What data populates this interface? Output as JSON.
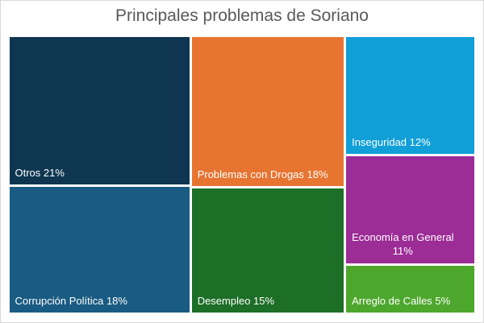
{
  "chart_data": {
    "type": "treemap",
    "title": "Principales problemas de Soriano",
    "items": [
      {
        "name": "Otros",
        "value": 21,
        "label": "Otros 21%",
        "color": "#0e3650"
      },
      {
        "name": "Corrupción Política",
        "value": 18,
        "label": "Corrupción Política 18%",
        "color": "#195b82"
      },
      {
        "name": "Problemas con Drogas",
        "value": 18,
        "label": "Problemas con Drogas 18%",
        "color": "#e87432"
      },
      {
        "name": "Desempleo",
        "value": 15,
        "label": "Desempleo 15%",
        "color": "#1d6e27"
      },
      {
        "name": "Inseguridad",
        "value": 12,
        "label": "Inseguridad 12%",
        "color": "#119fd8"
      },
      {
        "name": "Economía en General",
        "value": 11,
        "label": "Economía en General",
        "label2": "11%",
        "color": "#9c2c96"
      },
      {
        "name": "Arreglo de Calles",
        "value": 5,
        "label": "Arreglo de Calles 5%",
        "color": "#4ea72d"
      }
    ]
  }
}
